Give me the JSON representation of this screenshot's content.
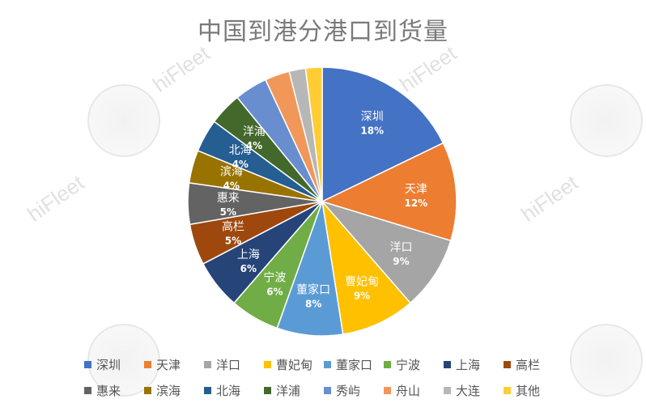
{
  "chart_data": {
    "type": "pie",
    "title": "中国到港分港口到货量",
    "categories": [
      "深圳",
      "天津",
      "洋口",
      "曹妃甸",
      "董家口",
      "宁波",
      "上海",
      "高栏",
      "惠来",
      "滨海",
      "北海",
      "洋浦",
      "秀屿",
      "舟山",
      "大连",
      "其他"
    ],
    "values": [
      18,
      12,
      9,
      9,
      8,
      6,
      6,
      5,
      5,
      4,
      4,
      4,
      4,
      3,
      2,
      2
    ],
    "slice_labels": [
      "18%",
      "12%",
      "9%",
      "9%",
      "8%",
      "6%",
      "6%",
      "5%",
      "5%",
      "4%",
      "4%",
      "4%",
      "",
      "",
      "",
      ""
    ],
    "colors": [
      "#4472C4",
      "#ED7D31",
      "#A5A5A5",
      "#FFC000",
      "#5B9BD5",
      "#70AD47",
      "#264478",
      "#9E480E",
      "#636363",
      "#997300",
      "#255E91",
      "#43682B",
      "#698ED0",
      "#F1975A",
      "#B7B7B7",
      "#FFCD33"
    ],
    "legend_placement": "bottom"
  },
  "watermark": "hiFleet"
}
